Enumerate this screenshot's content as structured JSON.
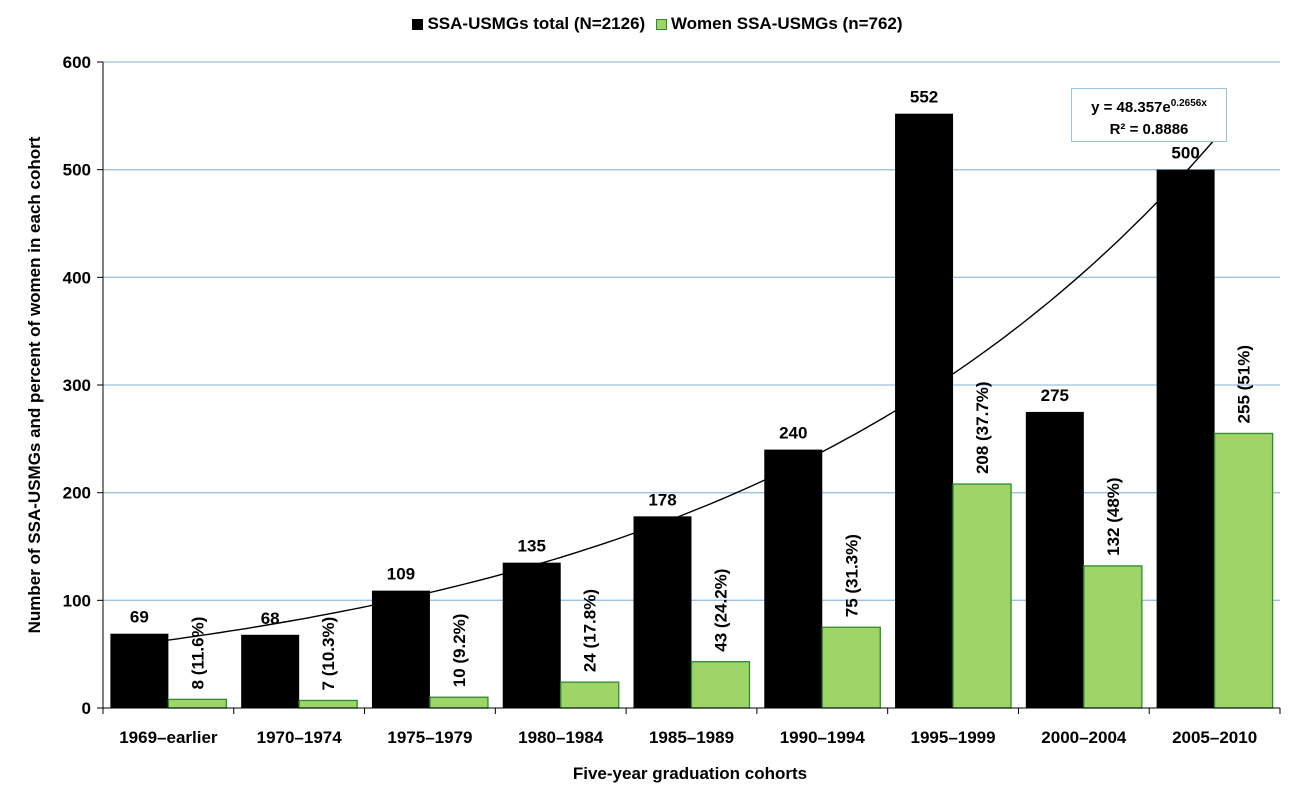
{
  "chart_data": {
    "type": "bar",
    "categories": [
      "1969–earlier",
      "1970–1974",
      "1975–1979",
      "1980–1984",
      "1985–1989",
      "1990–1994",
      "1995–1999",
      "2000–2004",
      "2005–2010"
    ],
    "series": [
      {
        "name": "SSA-USMGs total (N=2126)",
        "color": "#000000",
        "values": [
          69,
          68,
          109,
          135,
          178,
          240,
          552,
          275,
          500
        ],
        "labels": [
          "69",
          "68",
          "109",
          "135",
          "178",
          "240",
          "552",
          "275",
          "500"
        ]
      },
      {
        "name": "Women SSA-USMGs (n=762)",
        "color": "#9fd468",
        "values": [
          8,
          7,
          10,
          24,
          43,
          75,
          208,
          132,
          255
        ],
        "labels": [
          "8 (11.6%)",
          "7 (10.3%)",
          "10 (9.2%)",
          "24 (17.8%)",
          "43 (24.2%)",
          "75 (31.3%)",
          "208 (37.7%)",
          "132 (48%)",
          "255 (51%)"
        ]
      }
    ],
    "ylim": [
      0,
      600
    ],
    "yticks": [
      0,
      100,
      200,
      300,
      400,
      500,
      600
    ],
    "xlabel": "Five-year graduation cohorts",
    "ylabel": "Number of SSA-USMGs and percent of women in each cohort",
    "grid": true,
    "legend_position": "top",
    "trendline": {
      "type": "exponential",
      "a": 48.357,
      "b": 0.2656,
      "equation_base": "y = 48.357e",
      "equation_exponent": "0.2656x",
      "r2_text": "R² = 0.8886"
    },
    "colors": {
      "grid": "#9cc0e0",
      "women_border": "#2e8b2e"
    }
  }
}
